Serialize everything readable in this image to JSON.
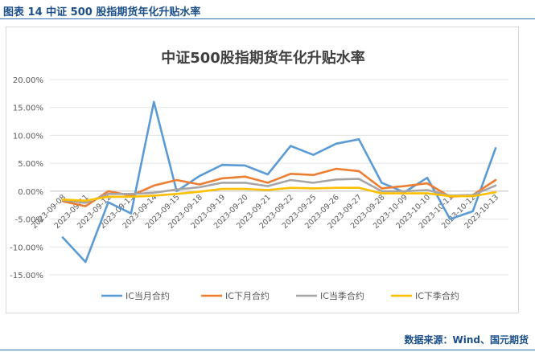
{
  "figure_label": "图表 14  中证 500 股指期货年化升贴水率",
  "source": "数据来源：Wind、国元期货",
  "chart_data": {
    "type": "line",
    "title": "中证500股指期货年化升贴水率",
    "categories": [
      "2023-09-08",
      "2023-09-11",
      "2023-09-12",
      "2023-09-13",
      "2023-09-14",
      "2023-09-15",
      "2023-09-18",
      "2023-09-19",
      "2023-09-20",
      "2023-09-21",
      "2023-09-22",
      "2023-09-25",
      "2023-09-26",
      "2023-09-27",
      "2023-09-28",
      "2023-10-09",
      "2023-10-10",
      "2023-10-11",
      "2023-10-12",
      "2023-10-13"
    ],
    "y_ticks": [
      "20.00%",
      "15.00%",
      "10.00%",
      "5.00%",
      "0.00%",
      "-5.00%",
      "-10.00%",
      "-15.00%"
    ],
    "ylim": [
      -15,
      20
    ],
    "y_unit": "%",
    "grid": true,
    "legend_position": "bottom",
    "series": [
      {
        "name": "IC当月合约",
        "color": "#5b9bd5",
        "values": [
          -8.3,
          -12.7,
          -2.0,
          -4.0,
          16.0,
          0.0,
          2.7,
          4.7,
          4.6,
          3.0,
          8.1,
          6.5,
          8.5,
          9.3,
          1.5,
          -0.2,
          2.4,
          -5.0,
          -3.6,
          7.7
        ]
      },
      {
        "name": "IC下月合约",
        "color": "#ed7d31",
        "values": [
          -1.8,
          -2.7,
          0.0,
          -0.8,
          1.0,
          2.0,
          1.2,
          2.3,
          2.6,
          1.5,
          3.1,
          2.9,
          4.0,
          3.6,
          0.5,
          0.9,
          1.4,
          -1.0,
          -0.7,
          2.0
        ]
      },
      {
        "name": "IC当季合约",
        "color": "#a5a5a5",
        "values": [
          -1.6,
          -2.1,
          -0.5,
          -0.5,
          -0.3,
          0.3,
          0.7,
          1.5,
          1.5,
          0.9,
          2.0,
          1.5,
          2.1,
          2.2,
          0.0,
          0.0,
          0.2,
          -0.8,
          -0.7,
          1.0
        ]
      },
      {
        "name": "IC下季合约",
        "color": "#ffc000",
        "values": [
          -1.5,
          -1.7,
          -1.0,
          -1.0,
          -0.8,
          -0.5,
          -0.1,
          0.4,
          0.4,
          0.2,
          0.6,
          0.5,
          0.6,
          0.6,
          -0.4,
          -0.4,
          -0.4,
          -0.9,
          -0.9,
          -0.2
        ]
      }
    ]
  }
}
